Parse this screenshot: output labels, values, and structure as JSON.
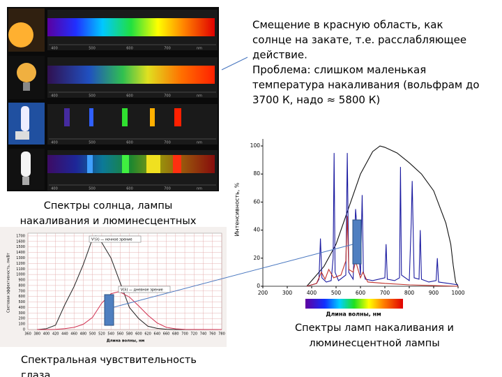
{
  "spectra_panel": {
    "scale_labels": [
      "400",
      "500",
      "600",
      "700",
      "nm"
    ]
  },
  "captions": {
    "spectra_photos": [
      "Спектры солнца, лампы",
      "накаливания и люминесцентных"
    ],
    "lamp_spectra": [
      "Спектры ламп накаливания и",
      "люминесцентной лампы"
    ],
    "eye_sensitivity": [
      "Спектральная чувствительность",
      "глаза"
    ]
  },
  "notes": [
    "Смещение в красную область, как",
    "солнце на закате, т.е. расслабляющее",
    "действие.",
    "Проблема: слишком маленькая",
    "температура накаливания (вольфрам до",
    "3700 К, надо ≈ 5800 К)"
  ],
  "chart_data": [
    {
      "type": "line",
      "x_label": "Длина волны, нм",
      "y_label": "Интенсивность, %",
      "xlim": [
        200,
        1000
      ],
      "ylim": [
        0,
        105
      ],
      "xticks": [
        200,
        300,
        400,
        500,
        600,
        700,
        800,
        900,
        1000
      ],
      "yticks": [
        0,
        20,
        40,
        60,
        80,
        100
      ],
      "series": [
        {
          "color": "#111111",
          "x": [
            380,
            400,
            450,
            500,
            550,
            600,
            650,
            680,
            700,
            750,
            800,
            850,
            900,
            950,
            970,
            980,
            990,
            1000
          ],
          "values": [
            0,
            4,
            14,
            30,
            55,
            80,
            96,
            100,
            99,
            95,
            88,
            80,
            68,
            45,
            30,
            15,
            3,
            0
          ]
        },
        {
          "color": "#1a1aa0",
          "x": [
            380,
            420,
            430,
            436,
            442,
            460,
            480,
            488,
            492,
            496,
            510,
            540,
            546,
            552,
            570,
            580,
            600,
            607,
            612,
            620,
            650,
            700,
            705,
            710,
            740,
            760,
            764,
            768,
            800,
            808,
            812,
            820,
            840,
            845,
            850,
            880,
            910,
            915,
            920,
            960,
            1000
          ],
          "values": [
            0,
            2,
            5,
            34,
            6,
            3,
            4,
            20,
            95,
            10,
            4,
            8,
            95,
            10,
            5,
            55,
            8,
            65,
            10,
            5,
            4,
            6,
            30,
            5,
            4,
            6,
            85,
            8,
            4,
            45,
            75,
            6,
            5,
            40,
            5,
            3,
            4,
            20,
            3,
            2,
            1
          ]
        },
        {
          "color": "#c0302a",
          "x": [
            380,
            420,
            440,
            455,
            470,
            490,
            520,
            540,
            546,
            552,
            570,
            580,
            600,
            610,
            630,
            700,
            800,
            1000
          ],
          "values": [
            0,
            2,
            10,
            5,
            12,
            6,
            8,
            18,
            50,
            12,
            10,
            18,
            6,
            10,
            3,
            2,
            1,
            0
          ]
        }
      ]
    },
    {
      "type": "line",
      "x_label": "Длина волны, нм",
      "y_label": "Световая эффективность, лм/Вт",
      "xlim": [
        360,
        780
      ],
      "ylim": [
        0,
        1750
      ],
      "xticks": [
        360,
        380,
        400,
        420,
        440,
        460,
        480,
        500,
        520,
        540,
        560,
        580,
        600,
        620,
        640,
        660,
        680,
        700,
        720,
        740,
        760,
        780
      ],
      "yticks": [
        0,
        100,
        200,
        300,
        400,
        500,
        600,
        700,
        800,
        900,
        1000,
        1100,
        1200,
        1300,
        1400,
        1500,
        1600,
        1700
      ],
      "series": [
        {
          "name": "V'(λ) — ночное зрение",
          "color": "#222222",
          "x": [
            380,
            400,
            420,
            440,
            460,
            480,
            500,
            507,
            520,
            540,
            560,
            580,
            600,
            620,
            640,
            660,
            680,
            700,
            780
          ],
          "values": [
            0,
            15,
            80,
            450,
            780,
            1180,
            1650,
            1700,
            1580,
            1300,
            850,
            400,
            200,
            60,
            20,
            5,
            0,
            0,
            0
          ]
        },
        {
          "name": "V(λ) — дневное зрение",
          "color": "#d03050",
          "x": [
            380,
            400,
            420,
            440,
            460,
            480,
            500,
            520,
            540,
            555,
            560,
            580,
            600,
            620,
            640,
            660,
            680,
            700,
            720,
            780
          ],
          "values": [
            0,
            0,
            3,
            16,
            40,
            95,
            220,
            480,
            650,
            683,
            680,
            590,
            430,
            260,
            120,
            40,
            12,
            3,
            1,
            0
          ]
        }
      ]
    }
  ]
}
